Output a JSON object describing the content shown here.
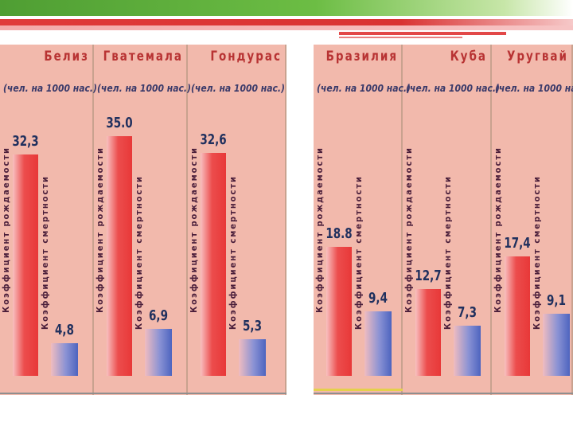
{
  "chart_data": {
    "type": "bar",
    "unit_label": "(чел. на 1000 нас.)",
    "series_labels": {
      "birth": "Коэффициент рождаемости",
      "death": "Коэффициент смертности"
    },
    "ylim": [
      0,
      40
    ],
    "groups": [
      {
        "panels": [
          {
            "country": "Белиз",
            "birth": 32.3,
            "death": 4.8,
            "birth_label": "32,3",
            "death_label": "4,8"
          },
          {
            "country": "Гватемала",
            "birth": 35.0,
            "death": 6.9,
            "birth_label": "35.0",
            "death_label": "6,9"
          },
          {
            "country": "Гондурас",
            "birth": 32.6,
            "death": 5.3,
            "birth_label": "32,6",
            "death_label": "5,3"
          }
        ]
      },
      {
        "panels": [
          {
            "country": "Бразилия",
            "birth": 18.8,
            "death": 9.4,
            "birth_label": "18.8",
            "death_label": "9,4"
          },
          {
            "country": "Куба",
            "birth": 12.7,
            "death": 7.3,
            "birth_label": "12,7",
            "death_label": "7,3"
          },
          {
            "country": "Уругвай",
            "birth": 17.4,
            "death": 9.1,
            "birth_label": "17,4",
            "death_label": "9,1"
          }
        ]
      }
    ]
  }
}
